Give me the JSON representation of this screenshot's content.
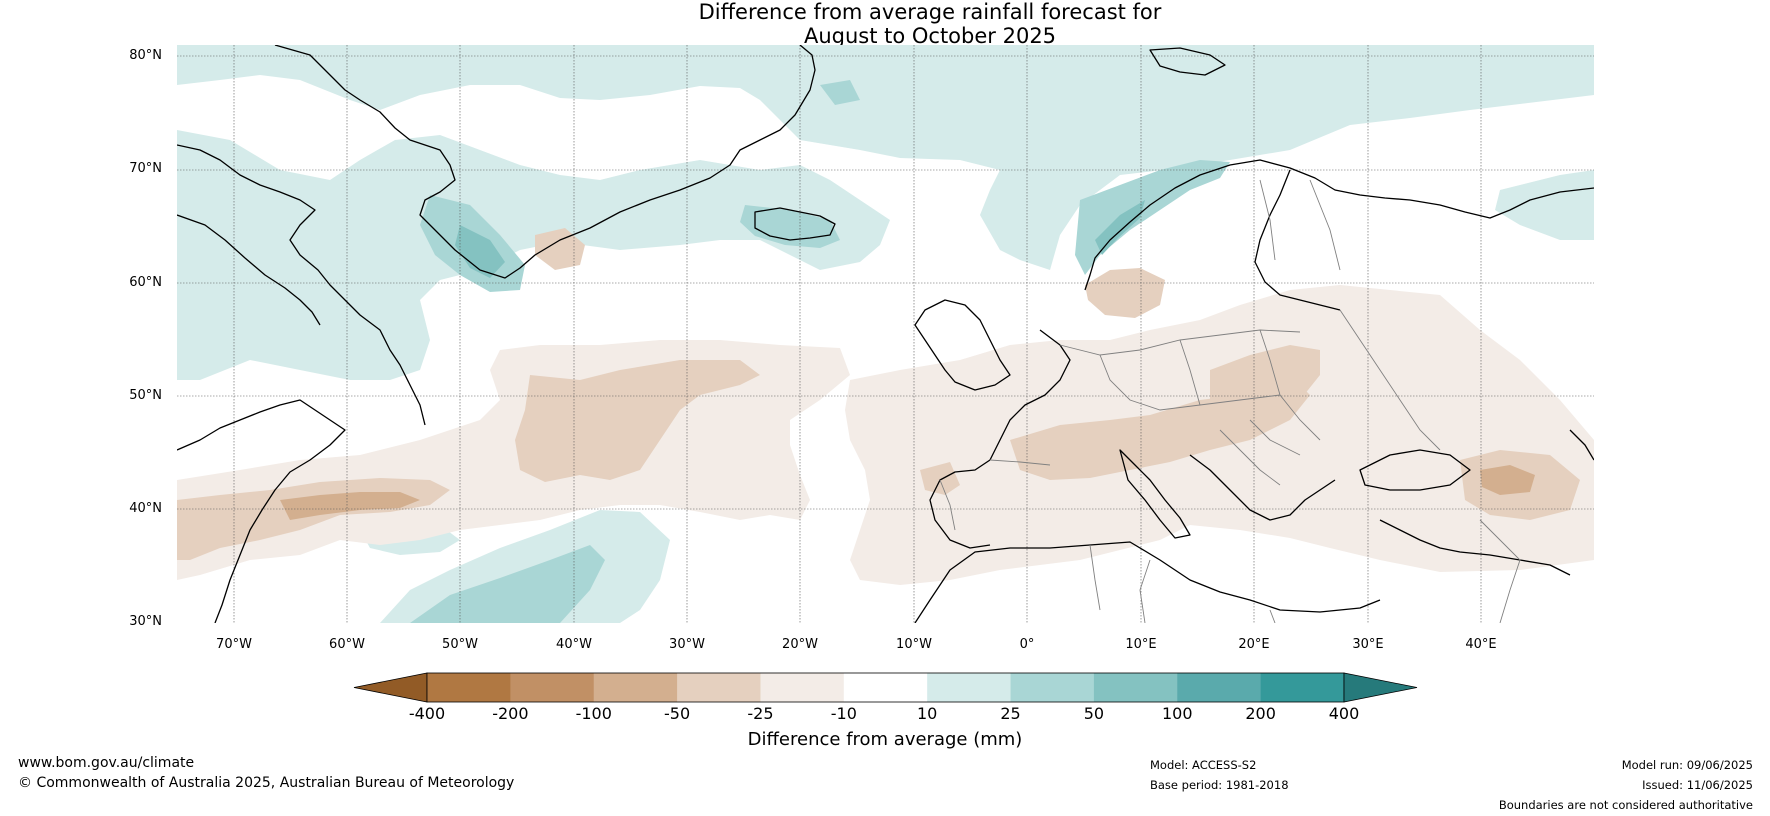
{
  "title": {
    "line1": "Difference from average rainfall forecast for",
    "line2": "August to October 2025"
  },
  "map": {
    "lat_labels": [
      "80°N",
      "70°N",
      "60°N",
      "50°N",
      "40°N",
      "30°N"
    ],
    "lon_labels": [
      "70°W",
      "60°W",
      "50°W",
      "40°W",
      "30°W",
      "20°W",
      "10°W",
      "0°",
      "10°E",
      "20°E",
      "30°E",
      "40°E"
    ],
    "extent": {
      "lon": [
        -75,
        50
      ],
      "lat": [
        30,
        81
      ]
    },
    "gridlines": true,
    "ocean_color": "#ffffff",
    "coastline_color": "#000000",
    "border_color": "#808080"
  },
  "colorbar": {
    "title": "Difference from average (mm)",
    "tick_labels": [
      "-400",
      "-200",
      "-100",
      "-50",
      "-25",
      "-10",
      "10",
      "25",
      "50",
      "100",
      "200",
      "400"
    ],
    "colors": [
      "#925b26",
      "#b07842",
      "#c19065",
      "#d3af8f",
      "#e5d0bf",
      "#f3ece7",
      "#ffffff",
      "#d5ebea",
      "#a9d6d5",
      "#84c2c1",
      "#5aaaac",
      "#34999a",
      "#267a7b"
    ]
  },
  "footer": {
    "url": "www.bom.gov.au/climate",
    "copyright": "© Commonwealth of Australia 2025, Australian Bureau of Meteorology",
    "model": "Model: ACCESS-S2",
    "base_period": "Base period: 1981-2018",
    "model_run": "Model run: 09/06/2025",
    "issued": "Issued: 11/06/2025",
    "disclaimer": "Boundaries are not considered authoritative"
  }
}
